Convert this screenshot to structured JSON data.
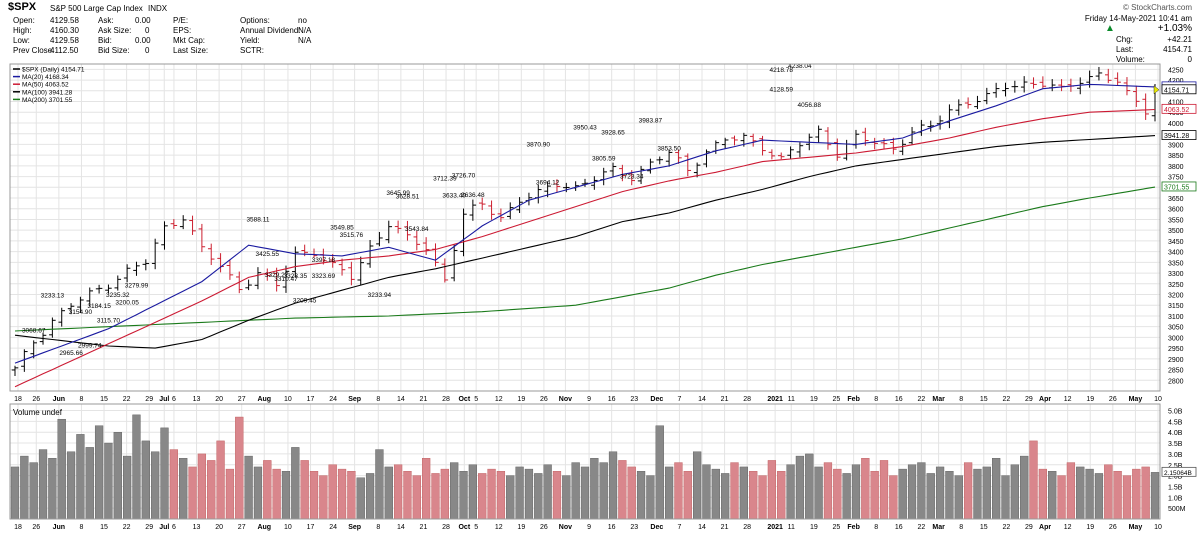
{
  "header": {
    "symbol": "$SPX",
    "name": "S&P 500 Large Cap Index",
    "exchange": "INDX",
    "copyright": "© StockCharts.com",
    "date": "Friday   14-May-2021  10:41 am",
    "change_pct": "+1.03%",
    "change_label": "Chg:",
    "change_val": "+42.21",
    "last_label": "Last:",
    "last_val": "4154.71",
    "volume_label": "Volume:",
    "volume_val": "0"
  },
  "stats": {
    "open_label": "Open:",
    "open": "4129.58",
    "high_label": "High:",
    "high": "4160.30",
    "low_label": "Low:",
    "low": "4129.58",
    "prevclose_label": "Prev Close:",
    "prevclose": "4112.50",
    "ask_label": "Ask:",
    "ask": "0.00",
    "asksize_label": "Ask Size:",
    "asksize": "0",
    "bid_label": "Bid:",
    "bid": "0.00",
    "bidsize_label": "Bid Size:",
    "bidsize": "0",
    "pe_label": "P/E:",
    "eps_label": "EPS:",
    "mktcap_label": "Mkt Cap:",
    "lastsize_label": "Last Size:",
    "options_label": "Options:",
    "options": "no",
    "div_label": "Annual Dividend:",
    "div": "N/A",
    "yield_label": "Yield:",
    "yield": "N/A",
    "sctr_label": "SCTR:"
  },
  "legend": [
    {
      "text": "$SPX (Daily) 4154.71",
      "color": "#000000"
    },
    {
      "text": "MA(20) 4168.34",
      "color": "#1a1aa0"
    },
    {
      "text": "MA(50) 4063.52",
      "color": "#cc1a33"
    },
    {
      "text": "MA(100) 3941.28",
      "color": "#000000"
    },
    {
      "text": "MA(200) 3701.55",
      "color": "#1a7a1a"
    }
  ],
  "volume_label": "Volume undef",
  "colors": {
    "up": "#000000",
    "down": "#cc1f2f",
    "vol_up": "#888888",
    "vol_down": "#d9868c",
    "ma20": "#1a1aa0",
    "ma50": "#cc1a33",
    "ma100": "#000000",
    "ma200": "#1a7a1a",
    "grid": "#e4e4e4"
  },
  "chart_data": {
    "type": "ohlc",
    "title": "$SPX S&P 500 Large Cap Index INDX",
    "ylim": [
      2750,
      4275
    ],
    "y_ticks": [
      2800,
      2850,
      2900,
      2950,
      3000,
      3050,
      3100,
      3150,
      3200,
      3250,
      3300,
      3350,
      3400,
      3450,
      3500,
      3550,
      3600,
      3650,
      3700,
      3750,
      3800,
      3850,
      3900,
      3950,
      4000,
      4050,
      4100,
      4150,
      4200,
      4250
    ],
    "vol_ticks": [
      "5.0B",
      "4.5B",
      "4.0B",
      "3.5B",
      "3.0B",
      "2.5B",
      "2.0B",
      "1.5B",
      "1.0B",
      "500M"
    ],
    "vol_tick_values": [
      5.0,
      4.5,
      4.0,
      3.5,
      3.0,
      2.5,
      2.0,
      1.5,
      1.0,
      0.5
    ],
    "vol_ylim": [
      0,
      5.3
    ],
    "x_labels": [
      "18",
      "26",
      "Jun",
      "8",
      "15",
      "22",
      "29",
      "Jul",
      "6",
      "13",
      "20",
      "27",
      "Aug",
      "10",
      "17",
      "24",
      "Sep",
      "8",
      "14",
      "21",
      "28",
      "Oct",
      "5",
      "12",
      "19",
      "26",
      "Nov",
      "9",
      "16",
      "23",
      "Dec",
      "7",
      "14",
      "21",
      "28",
      "2021",
      "11",
      "19",
      "25",
      "Feb",
      "8",
      "16",
      "22",
      "Mar",
      "8",
      "15",
      "22",
      "29",
      "Apr",
      "12",
      "19",
      "26",
      "May",
      "10"
    ],
    "x_label_index": [
      0,
      17,
      38,
      59,
      80,
      101,
      122,
      136,
      145,
      166,
      187,
      208,
      229,
      251,
      272,
      293,
      313,
      335,
      356,
      377,
      398,
      415,
      426,
      447,
      468,
      489,
      509,
      531,
      552,
      573,
      594,
      615,
      636,
      657,
      678,
      704,
      719,
      740,
      761,
      777,
      798,
      819,
      840,
      856,
      877,
      898,
      919,
      940,
      955,
      976,
      997,
      1018,
      1039,
      1060
    ],
    "price_annotations": [
      {
        "label": "3068.67",
        "d": 2,
        "v": 3068.67
      },
      {
        "label": "3233.13",
        "d": 4,
        "v": 3233.13
      },
      {
        "label": "2965.66",
        "d": 6,
        "v": 2965.66
      },
      {
        "label": "3154.90",
        "d": 7,
        "v": 3154.9
      },
      {
        "label": "2999.74",
        "d": 8,
        "v": 2999.74
      },
      {
        "label": "3184.15",
        "d": 9,
        "v": 3184.15
      },
      {
        "label": "3115.70",
        "d": 10,
        "v": 3115.7
      },
      {
        "label": "3235.32",
        "d": 11,
        "v": 3235.32
      },
      {
        "label": "3200.05",
        "d": 12,
        "v": 3200.05
      },
      {
        "label": "3279.99",
        "d": 13,
        "v": 3279.99
      },
      {
        "label": "3588.11",
        "d": 26,
        "v": 3588.11
      },
      {
        "label": "3425.55",
        "d": 27,
        "v": 3425.55
      },
      {
        "label": "3329.27",
        "d": 28,
        "v": 3329.27
      },
      {
        "label": "3310.47",
        "d": 29,
        "v": 3310.47
      },
      {
        "label": "3323.35",
        "d": 30,
        "v": 3323.35
      },
      {
        "label": "3209.45",
        "d": 31,
        "v": 3209.45
      },
      {
        "label": "3397.18",
        "d": 33,
        "v": 3397.18
      },
      {
        "label": "3323.69",
        "d": 33,
        "v": 3323.69
      },
      {
        "label": "3549.85",
        "d": 35,
        "v": 3549.85
      },
      {
        "label": "3515.76",
        "d": 36,
        "v": 3515.76
      },
      {
        "label": "3233.94",
        "d": 39,
        "v": 3233.94
      },
      {
        "label": "3645.99",
        "d": 41,
        "v": 3645.99
      },
      {
        "label": "3628.51",
        "d": 42,
        "v": 3628.51
      },
      {
        "label": "3543.84",
        "d": 43,
        "v": 3543.84
      },
      {
        "label": "3712.39",
        "d": 46,
        "v": 3712.39
      },
      {
        "label": "3633.40",
        "d": 47,
        "v": 3633.4
      },
      {
        "label": "3726.70",
        "d": 48,
        "v": 3726.7
      },
      {
        "label": "3636.48",
        "d": 49,
        "v": 3636.48
      },
      {
        "label": "3870.90",
        "d": 56,
        "v": 3870.9
      },
      {
        "label": "3694.12",
        "d": 57,
        "v": 3694.12
      },
      {
        "label": "3950.43",
        "d": 61,
        "v": 3950.43
      },
      {
        "label": "3928.65",
        "d": 64,
        "v": 3928.65
      },
      {
        "label": "3805.59",
        "d": 63,
        "v": 3805.59
      },
      {
        "label": "3723.34",
        "d": 66,
        "v": 3723.34
      },
      {
        "label": "3983.87",
        "d": 68,
        "v": 3983.87
      },
      {
        "label": "3853.50",
        "d": 70,
        "v": 3853.5
      },
      {
        "label": "4218.78",
        "d": 82,
        "v": 4218.78
      },
      {
        "label": "4238.04",
        "d": 84,
        "v": 4238.04
      },
      {
        "label": "4128.59",
        "d": 82,
        "v": 4128.59
      },
      {
        "label": "4056.88",
        "d": 85,
        "v": 4056.88
      }
    ],
    "axis_markers": [
      {
        "label": "4168.34",
        "v": 4168.34,
        "color": "#1a1aa0"
      },
      {
        "label": "4154.71",
        "v": 4154.71,
        "color": "#000000"
      },
      {
        "label": "4063.52",
        "v": 4063.52,
        "color": "#cc1a33"
      },
      {
        "label": "3941.28",
        "v": 3941.28,
        "color": "#000000"
      },
      {
        "label": "3701.55",
        "v": 3701.55,
        "color": "#1a7a1a"
      }
    ],
    "vol_marker": {
      "label": "2.15064B",
      "v": 2.15
    },
    "close_anchors": [
      [
        0,
        2850
      ],
      [
        2,
        2980
      ],
      [
        4,
        3080
      ],
      [
        6,
        3150
      ],
      [
        8,
        3200
      ],
      [
        10,
        3250
      ],
      [
        12,
        3310
      ],
      [
        14,
        3350
      ],
      [
        16,
        3510
      ],
      [
        18,
        3565
      ],
      [
        20,
        3410
      ],
      [
        22,
        3330
      ],
      [
        24,
        3230
      ],
      [
        26,
        3300
      ],
      [
        28,
        3240
      ],
      [
        30,
        3390
      ],
      [
        32,
        3400
      ],
      [
        34,
        3330
      ],
      [
        36,
        3280
      ],
      [
        38,
        3420
      ],
      [
        40,
        3530
      ],
      [
        42,
        3460
      ],
      [
        44,
        3420
      ],
      [
        46,
        3270
      ],
      [
        48,
        3570
      ],
      [
        50,
        3620
      ],
      [
        52,
        3560
      ],
      [
        54,
        3640
      ],
      [
        56,
        3670
      ],
      [
        58,
        3720
      ],
      [
        60,
        3700
      ],
      [
        62,
        3740
      ],
      [
        64,
        3780
      ],
      [
        66,
        3750
      ],
      [
        68,
        3810
      ],
      [
        70,
        3860
      ],
      [
        72,
        3780
      ],
      [
        74,
        3870
      ],
      [
        76,
        3920
      ],
      [
        78,
        3930
      ],
      [
        80,
        3890
      ],
      [
        82,
        3830
      ],
      [
        84,
        3900
      ],
      [
        86,
        3960
      ],
      [
        88,
        3860
      ],
      [
        90,
        3930
      ],
      [
        92,
        3910
      ],
      [
        94,
        3880
      ],
      [
        96,
        3960
      ],
      [
        98,
        3980
      ],
      [
        100,
        4060
      ],
      [
        102,
        4100
      ],
      [
        104,
        4120
      ],
      [
        106,
        4170
      ],
      [
        108,
        4185
      ],
      [
        110,
        4185
      ],
      [
        112,
        4150
      ],
      [
        114,
        4200
      ],
      [
        116,
        4230
      ],
      [
        118,
        4190
      ],
      [
        119,
        4130
      ],
      [
        120,
        4095
      ],
      [
        121,
        4060
      ],
      [
        122,
        4155
      ]
    ],
    "ma20_anchors": [
      [
        0,
        2880
      ],
      [
        10,
        3040
      ],
      [
        20,
        3260
      ],
      [
        25,
        3430
      ],
      [
        30,
        3390
      ],
      [
        35,
        3380
      ],
      [
        40,
        3420
      ],
      [
        45,
        3360
      ],
      [
        50,
        3520
      ],
      [
        55,
        3640
      ],
      [
        60,
        3700
      ],
      [
        65,
        3760
      ],
      [
        70,
        3800
      ],
      [
        75,
        3870
      ],
      [
        80,
        3920
      ],
      [
        85,
        3910
      ],
      [
        90,
        3900
      ],
      [
        95,
        3930
      ],
      [
        100,
        4010
      ],
      [
        105,
        4080
      ],
      [
        110,
        4160
      ],
      [
        115,
        4180
      ],
      [
        122,
        4168
      ]
    ],
    "ma50_anchors": [
      [
        0,
        2770
      ],
      [
        10,
        2970
      ],
      [
        20,
        3170
      ],
      [
        25,
        3280
      ],
      [
        30,
        3330
      ],
      [
        35,
        3360
      ],
      [
        40,
        3380
      ],
      [
        45,
        3410
      ],
      [
        50,
        3470
      ],
      [
        55,
        3540
      ],
      [
        60,
        3610
      ],
      [
        65,
        3680
      ],
      [
        70,
        3730
      ],
      [
        75,
        3770
      ],
      [
        80,
        3820
      ],
      [
        85,
        3840
      ],
      [
        90,
        3860
      ],
      [
        95,
        3890
      ],
      [
        100,
        3930
      ],
      [
        105,
        3980
      ],
      [
        110,
        4020
      ],
      [
        115,
        4050
      ],
      [
        122,
        4063
      ]
    ],
    "ma100_anchors": [
      [
        0,
        3010
      ],
      [
        5,
        2985
      ],
      [
        10,
        2960
      ],
      [
        15,
        2950
      ],
      [
        20,
        2990
      ],
      [
        25,
        3080
      ],
      [
        30,
        3160
      ],
      [
        35,
        3220
      ],
      [
        40,
        3280
      ],
      [
        45,
        3320
      ],
      [
        50,
        3370
      ],
      [
        55,
        3420
      ],
      [
        60,
        3470
      ],
      [
        65,
        3540
      ],
      [
        70,
        3580
      ],
      [
        75,
        3640
      ],
      [
        80,
        3690
      ],
      [
        85,
        3750
      ],
      [
        90,
        3800
      ],
      [
        95,
        3830
      ],
      [
        100,
        3860
      ],
      [
        105,
        3890
      ],
      [
        110,
        3910
      ],
      [
        122,
        3941
      ]
    ],
    "ma200_anchors": [
      [
        0,
        3030
      ],
      [
        10,
        3050
      ],
      [
        20,
        3070
      ],
      [
        30,
        3090
      ],
      [
        40,
        3100
      ],
      [
        50,
        3120
      ],
      [
        60,
        3150
      ],
      [
        65,
        3190
      ],
      [
        70,
        3230
      ],
      [
        75,
        3290
      ],
      [
        80,
        3340
      ],
      [
        85,
        3380
      ],
      [
        90,
        3420
      ],
      [
        95,
        3460
      ],
      [
        100,
        3510
      ],
      [
        105,
        3560
      ],
      [
        110,
        3610
      ],
      [
        115,
        3650
      ],
      [
        122,
        3701
      ]
    ],
    "vol_values": [
      2.4,
      2.9,
      2.6,
      3.2,
      2.8,
      4.6,
      3.1,
      3.9,
      3.3,
      4.3,
      3.5,
      4.0,
      2.9,
      4.8,
      3.6,
      3.1,
      4.2,
      3.2,
      2.8,
      2.4,
      3.0,
      2.7,
      3.6,
      2.3,
      4.7,
      2.9,
      2.4,
      2.7,
      2.3,
      2.2,
      3.3,
      2.7,
      2.2,
      2.0,
      2.5,
      2.3,
      2.2,
      1.9,
      2.1,
      3.2,
      2.4,
      2.5,
      2.2,
      2.0,
      2.8,
      2.1,
      2.3,
      2.6,
      2.2,
      2.5,
      2.1,
      2.3,
      2.2,
      2.0,
      2.4,
      2.3,
      2.1,
      2.5,
      2.2,
      2.0,
      2.6,
      2.4,
      2.8,
      2.6,
      3.1,
      2.7,
      2.4,
      2.2,
      2.0,
      4.3,
      2.4,
      2.6,
      2.2,
      3.1,
      2.5,
      2.3,
      2.1,
      2.6,
      2.4,
      2.2,
      2.0,
      2.7,
      2.2,
      2.5,
      2.9,
      3.0,
      2.4,
      2.6,
      2.3,
      2.1,
      2.5,
      2.8,
      2.2,
      2.7,
      2.0,
      2.3,
      2.5,
      2.6,
      2.1,
      2.4,
      2.2,
      2.0,
      2.6,
      2.3,
      2.4,
      2.8,
      2.0,
      2.5,
      2.9,
      3.6,
      2.3,
      2.2,
      2.0,
      2.6,
      2.4,
      2.3,
      2.1,
      2.5,
      2.2,
      2.0,
      2.3,
      2.4,
      2.15
    ]
  }
}
